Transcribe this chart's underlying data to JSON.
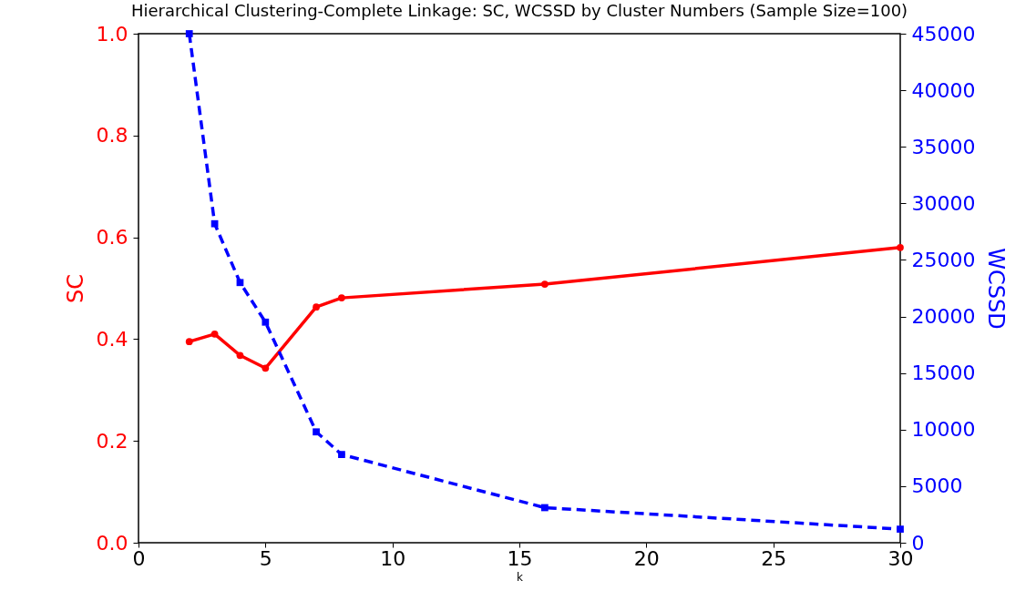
{
  "chart_data": {
    "type": "line",
    "title": "Hierarchical Clustering-Complete Linkage: SC, WCSSD by Cluster Numbers (Sample Size=100)",
    "xlabel": "k",
    "ylabel": "SC",
    "y2label": "WCSSD",
    "x": [
      2,
      3,
      4,
      5,
      7,
      8,
      16,
      30
    ],
    "xlim": [
      0,
      30
    ],
    "xticks": [
      0,
      5,
      10,
      15,
      20,
      25,
      30
    ],
    "ylim": [
      0,
      1
    ],
    "yticks": [
      {
        "value": 0,
        "label": "0.0"
      },
      0.2,
      0.4,
      0.6,
      0.8,
      {
        "value": 1,
        "label": "1.0"
      }
    ],
    "y2lim": [
      0,
      45000
    ],
    "y2ticks": [
      0,
      5000,
      10000,
      15000,
      20000,
      25000,
      30000,
      35000,
      40000,
      45000
    ],
    "grid": false,
    "series": [
      {
        "color": "#ff0000",
        "marker": "circle",
        "line_style": "solid",
        "values": [
          0.395,
          0.41,
          0.368,
          0.343,
          0.463,
          0.481,
          0.508,
          0.58
        ]
      },
      {
        "color": "#0000ff",
        "marker": "square",
        "line_style": "dashed",
        "axis": "y2",
        "values": [
          45000,
          28200,
          23000,
          19500,
          9800,
          7800,
          3100,
          1200
        ]
      }
    ]
  }
}
